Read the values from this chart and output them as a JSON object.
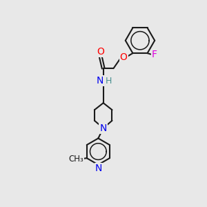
{
  "background_color": "#e8e8e8",
  "bond_color": "#1a1a1a",
  "atom_colors": {
    "O": "#ff0000",
    "N": "#0000ee",
    "F": "#dd00dd",
    "H": "#4a9090",
    "C": "#1a1a1a"
  },
  "bond_width": 1.5,
  "font_size": 10,
  "fig_bg": "#e8e8e8"
}
